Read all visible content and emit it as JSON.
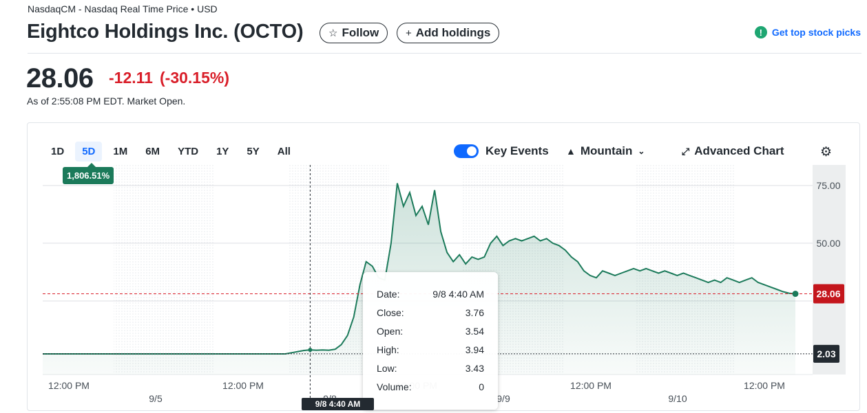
{
  "header": {
    "exchange_line": "NasdaqCM - Nasdaq Real Time Price • USD",
    "title": "Eightco Holdings Inc. (OCTO)",
    "follow_label": "Follow",
    "add_holdings_label": "Add holdings",
    "top_picks_label": "Get top stock picks"
  },
  "quote": {
    "price": "28.06",
    "change": "-12.11",
    "change_percent": "(-30.15%)",
    "as_of": "As of 2:55:08 PM EDT. Market Open."
  },
  "range_tabs": [
    "1D",
    "5D",
    "1M",
    "6M",
    "YTD",
    "1Y",
    "5Y",
    "All"
  ],
  "active_range": "5D",
  "performance_badge": "1,806.51%",
  "toolbar": {
    "key_events_label": "Key Events",
    "chart_type_label": "Mountain",
    "advanced_chart_label": "Advanced Chart"
  },
  "tooltip": {
    "rows": [
      {
        "label": "Date:",
        "value": "9/8 4:40 AM"
      },
      {
        "label": "Close:",
        "value": "3.76"
      },
      {
        "label": "Open:",
        "value": "3.54"
      },
      {
        "label": "High:",
        "value": "3.94"
      },
      {
        "label": "Low:",
        "value": "3.43"
      },
      {
        "label": "Volume:",
        "value": "0"
      }
    ]
  },
  "crosshair_label": "9/8 4:40 AM",
  "colors": {
    "line": "#1b7a5a",
    "negative": "#d91f2a",
    "link": "#0f69ff",
    "reference_price": "#232a31"
  },
  "chart_data": {
    "type": "area",
    "y_ticks": [
      "75.00",
      "50.00"
    ],
    "y_tick_values": [
      75,
      50
    ],
    "ylim": [
      0,
      80
    ],
    "x_tick_labels": [
      {
        "time": "12:00 PM",
        "date": ""
      },
      {
        "time": "",
        "date": "9/5"
      },
      {
        "time": "12:00 PM",
        "date": ""
      },
      {
        "time": "",
        "date": "9/8"
      },
      {
        "time": "12:00 PM",
        "date": ""
      },
      {
        "time": "",
        "date": "9/9"
      },
      {
        "time": "12:00 PM",
        "date": ""
      },
      {
        "time": "",
        "date": "9/10"
      },
      {
        "time": "12:00 PM",
        "date": ""
      }
    ],
    "current_price": 28.06,
    "current_price_label": "28.06",
    "previous_close": 2.03,
    "previous_close_label": "2.03",
    "series": [
      {
        "values": [
          2.0,
          2.0,
          2.0,
          2.0,
          2.0,
          2.0,
          2.0,
          2.0,
          2.0,
          2.0,
          2.0,
          2.0,
          2.0,
          2.0,
          2.0,
          2.0,
          2.0,
          2.0,
          2.0,
          2.0,
          2.0,
          2.0,
          2.0,
          2.0,
          2.0,
          2.0,
          2.0,
          2.0,
          2.0,
          2.0,
          2.0,
          2.0,
          2.0,
          2.0,
          2.0,
          2.0,
          2.0,
          2.0,
          2.0,
          2.0,
          2.5,
          3.0,
          3.5,
          3.76,
          3.6,
          3.7,
          3.6,
          4.0,
          6.0,
          10.0,
          18.0,
          32.0,
          42.0,
          40.0,
          35.0,
          34.0,
          50.0,
          76.0,
          66.0,
          72.0,
          62.0,
          66.0,
          58.0,
          73.0,
          55.0,
          46.0,
          42.0,
          45.0,
          41.0,
          44.0,
          43.0,
          44.0,
          50.0,
          53.0,
          49.0,
          51.0,
          52.0,
          51.0,
          52.0,
          53.0,
          51.0,
          52.0,
          50.0,
          49.0,
          47.0,
          44.0,
          42.0,
          38.0,
          36.0,
          35.0,
          38.0,
          37.0,
          36.0,
          37.0,
          38.0,
          39.0,
          38.0,
          39.0,
          38.0,
          37.0,
          38.0,
          37.0,
          36.0,
          37.0,
          36.0,
          35.0,
          34.0,
          33.0,
          34.0,
          33.0,
          35.0,
          34.0,
          33.0,
          34.0,
          35.0,
          33.0,
          32.0,
          31.0,
          30.0,
          29.0,
          28.3,
          28.06
        ]
      }
    ]
  }
}
